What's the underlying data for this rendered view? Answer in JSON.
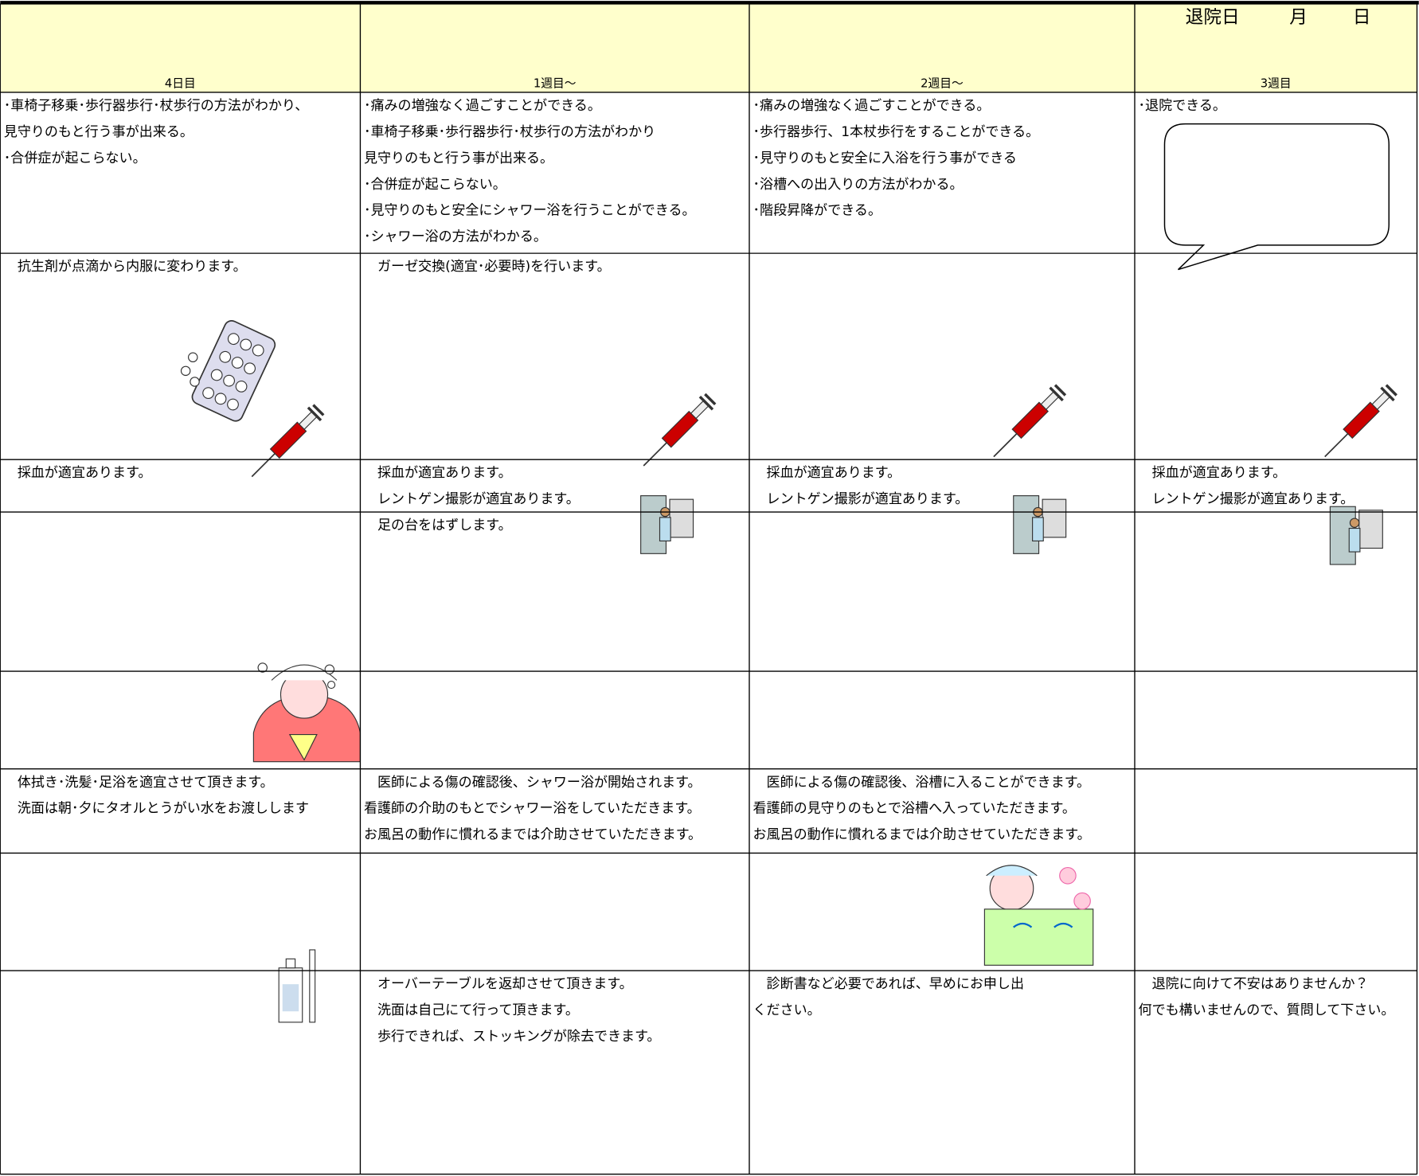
{
  "header": {
    "discharge": {
      "label": "退院日",
      "month": "月",
      "day": "日"
    },
    "columns": [
      "4日目",
      "1週目～",
      "2週目～",
      "3週目"
    ]
  },
  "rows": [
    [
      [
        "･車椅子移乗･歩行器歩行･杖歩行の方法がわかり、",
        "見守りのもと行う事が出来る。",
        "･合併症が起こらない。"
      ],
      [
        "･痛みの増強なく過ごすことができる。",
        "･車椅子移乗･歩行器歩行･杖歩行の方法がわかり",
        "見守りのもと行う事が出来る。",
        "･合併症が起こらない。",
        "･見守りのもと安全にシャワー浴を行うことができる。",
        "･シャワー浴の方法がわかる。"
      ],
      [
        "･痛みの増強なく過ごすことができる。",
        "･歩行器歩行、1本杖歩行をすることができる。",
        "･見守りのもと安全に入浴を行う事ができる",
        "･浴槽への出入りの方法がわかる。",
        "･階段昇降ができる。"
      ],
      [
        "･退院できる。"
      ]
    ],
    [
      [
        "　抗生剤が点滴から内服に変わります。"
      ],
      [
        "　ガーゼ交換(適宜･必要時)を行います。"
      ],
      [],
      []
    ],
    [
      [
        "　採血が適宜あります。"
      ],
      [
        "　採血が適宜あります。",
        "　レントゲン撮影が適宜あります。"
      ],
      [
        "　採血が適宜あります。",
        "　レントゲン撮影が適宜あります。"
      ],
      [
        "　採血が適宜あります。",
        "　レントゲン撮影が適宜あります。"
      ]
    ],
    [
      [],
      [
        "　足の台をはずします。"
      ],
      [],
      []
    ],
    [
      [],
      [],
      [],
      []
    ],
    [
      [
        "　体拭き･洗髪･足浴を適宜させて頂きます。",
        "　洗面は朝･夕にタオルとうがい水をお渡しします"
      ],
      [
        "　医師による傷の確認後、シャワー浴が開始されます。",
        "看護師の介助のもとでシャワー浴をしていただきます。",
        "お風呂の動作に慣れるまでは介助させていただきます。"
      ],
      [
        "　医師による傷の確認後、浴槽に入ることができます。",
        "看護師の見守りのもとで浴槽へ入っていただきます。",
        "お風呂の動作に慣れるまでは介助させていただきます。"
      ],
      []
    ],
    [
      [],
      [],
      [],
      []
    ],
    [
      [],
      [
        "　オーバーテーブルを返却させて頂きます。",
        "　洗面は自己にて行って頂きます。",
        "　歩行できれば、ストッキングが除去できます。"
      ],
      [
        "　診断書など必要であれば、早めにお申し出",
        "ください。"
      ],
      [
        "　退院に向けて不安はありませんか？",
        "何でも構いませんので、質問して下さい。"
      ]
    ]
  ]
}
